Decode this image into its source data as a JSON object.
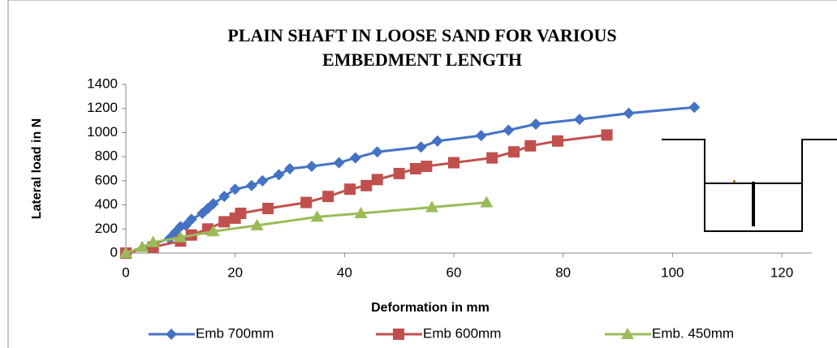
{
  "chart_data": {
    "type": "line",
    "title": [
      "PLAIN SHAFT IN LOOSE SAND FOR VARIOUS",
      "EMBEDMENT LENGTH"
    ],
    "x_label": "Deformation in mm",
    "y_label": "Lateral load in N",
    "xlim": [
      0,
      120
    ],
    "xticks": [
      0,
      20,
      40,
      60,
      80,
      100,
      120
    ],
    "ylim": [
      0,
      1400
    ],
    "yticks": [
      0,
      200,
      400,
      600,
      800,
      1000,
      1200,
      1400
    ],
    "grid": false,
    "legend": "bottom",
    "series": [
      {
        "name": "Emb 700mm",
        "color": "#4472c4",
        "marker": "diamond",
        "x": [
          0,
          8,
          9,
          10,
          11,
          12,
          14,
          15,
          16,
          18,
          20,
          23,
          25,
          28,
          30,
          34,
          39,
          42,
          46,
          54,
          57,
          65,
          70,
          75,
          83,
          92,
          104
        ],
        "values": [
          0,
          120,
          170,
          220,
          230,
          280,
          330,
          370,
          410,
          470,
          530,
          560,
          600,
          650,
          700,
          720,
          750,
          790,
          840,
          880,
          930,
          975,
          1020,
          1070,
          1110,
          1160,
          1210
        ]
      },
      {
        "name": "Emb 600mm",
        "color": "#c0504d",
        "marker": "square",
        "x": [
          0,
          5,
          10,
          12,
          15,
          18,
          20,
          21,
          26,
          33,
          37,
          41,
          44,
          46,
          50,
          53,
          55,
          60,
          67,
          71,
          74,
          79,
          88
        ],
        "values": [
          0,
          50,
          100,
          150,
          200,
          260,
          290,
          330,
          370,
          420,
          470,
          530,
          560,
          610,
          660,
          700,
          720,
          750,
          790,
          840,
          890,
          930,
          980
        ]
      },
      {
        "name": "Emb. 450mm",
        "color": "#9bbb59",
        "marker": "triangle",
        "x": [
          0,
          3,
          5,
          10,
          16,
          24,
          35,
          43,
          56,
          66
        ],
        "values": [
          0,
          50,
          90,
          130,
          180,
          230,
          300,
          330,
          380,
          420
        ]
      }
    ]
  }
}
